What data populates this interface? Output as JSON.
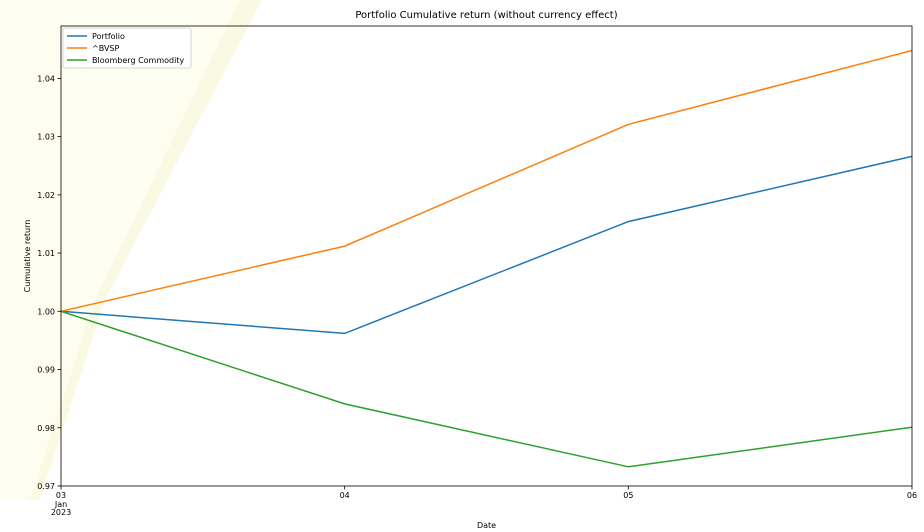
{
  "chart_data": {
    "type": "line",
    "title": "Portfolio Cumulative return (without currency effect)",
    "xlabel": "Date",
    "ylabel": "Cumulative return",
    "x": [
      "2023-01-03",
      "2023-01-04",
      "2023-01-05",
      "2023-01-06"
    ],
    "x_tick_labels": [
      "03",
      "04",
      "05",
      "06"
    ],
    "x_tick_sublabels": [
      "Jan",
      "2023"
    ],
    "ylim": [
      0.97,
      1.049
    ],
    "y_ticks": [
      0.97,
      0.98,
      0.99,
      1.0,
      1.01,
      1.02,
      1.03,
      1.04
    ],
    "y_tick_labels": [
      "0.97",
      "0.98",
      "0.99",
      "1.00",
      "1.01",
      "1.02",
      "1.03",
      "1.04"
    ],
    "grid": false,
    "legend_position": "top-left",
    "series": [
      {
        "name": "Portfolio",
        "color": "#1f77b4",
        "values": [
          1.0,
          0.9962,
          1.0154,
          1.0266
        ]
      },
      {
        "name": "^BVSP",
        "color": "#ff7f0e",
        "values": [
          1.0,
          1.0112,
          1.0321,
          1.0448
        ]
      },
      {
        "name": "Bloomberg Commodity",
        "color": "#2ca02c",
        "values": [
          1.0,
          0.9841,
          0.9733,
          0.9801
        ]
      }
    ]
  }
}
